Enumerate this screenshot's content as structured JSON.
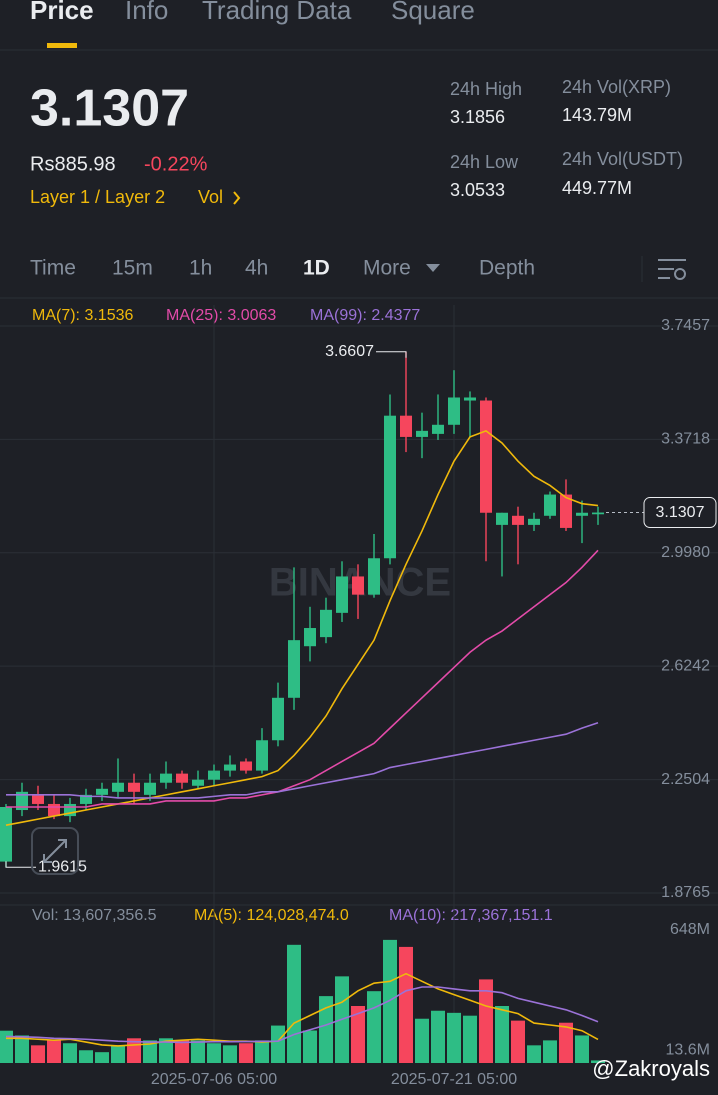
{
  "tabs": [
    "Price",
    "Info",
    "Trading Data",
    "Square"
  ],
  "price": {
    "last": "3.1307",
    "fiat": "Rs885.98",
    "change": "-0.22%",
    "tag": "Layer 1 / Layer 2",
    "vol_link": "Vol"
  },
  "stats": [
    {
      "label": "24h High",
      "value": "3.1856"
    },
    {
      "label": "24h Low",
      "value": "3.0533"
    },
    {
      "label": "24h Vol(XRP)",
      "value": "143.79M"
    },
    {
      "label": "24h Vol(USDT)",
      "value": "449.77M"
    }
  ],
  "timeframes": [
    "Time",
    "15m",
    "1h",
    "4h",
    "1D",
    "More",
    "Depth"
  ],
  "watermark": "BINANCE",
  "credit": "@Zakroyals",
  "chart_data": [
    {
      "type": "candlestick",
      "up_color": "#2ebd85",
      "down_color": "#f6465d",
      "grid": true,
      "categories": [
        null,
        null,
        null,
        null,
        null,
        null,
        null,
        null,
        null,
        null,
        null,
        null,
        null,
        "2025-07-06 05:00",
        null,
        null,
        null,
        null,
        null,
        null,
        null,
        null,
        null,
        null,
        null,
        null,
        null,
        null,
        "2025-07-21 05:00",
        null,
        null,
        null,
        null,
        null,
        null,
        null,
        null,
        null
      ],
      "open": [
        1.98,
        2.15,
        2.2,
        2.17,
        2.13,
        2.17,
        2.2,
        2.21,
        2.24,
        2.2,
        2.24,
        2.27,
        2.23,
        2.25,
        2.28,
        2.31,
        2.28,
        2.38,
        2.52,
        2.69,
        2.72,
        2.8,
        2.92,
        2.86,
        2.98,
        3.45,
        3.38,
        3.39,
        3.42,
        3.5,
        3.5,
        3.09,
        3.12,
        3.09,
        3.12,
        3.19,
        3.12,
        3.125
      ],
      "high": [
        2.17,
        2.24,
        2.23,
        2.2,
        2.19,
        2.22,
        2.24,
        2.32,
        2.27,
        2.27,
        2.31,
        2.28,
        2.28,
        2.3,
        2.33,
        2.32,
        2.42,
        2.57,
        2.95,
        2.82,
        2.85,
        2.97,
        2.96,
        3.06,
        3.52,
        3.6607,
        3.46,
        3.52,
        3.6,
        3.53,
        3.51,
        3.13,
        3.15,
        3.13,
        3.2,
        3.24,
        3.17,
        3.15
      ],
      "low": [
        1.9615,
        2.13,
        2.15,
        2.12,
        2.11,
        2.15,
        2.18,
        2.19,
        2.17,
        2.18,
        2.22,
        2.22,
        2.22,
        2.23,
        2.26,
        2.27,
        2.27,
        2.36,
        2.48,
        2.64,
        2.7,
        2.77,
        2.78,
        2.85,
        2.96,
        3.33,
        3.31,
        3.37,
        3.39,
        3.38,
        2.97,
        2.92,
        2.96,
        3.07,
        3.11,
        3.07,
        3.03,
        3.09
      ],
      "close": [
        2.16,
        2.21,
        2.17,
        2.13,
        2.17,
        2.2,
        2.22,
        2.24,
        2.21,
        2.24,
        2.27,
        2.24,
        2.25,
        2.28,
        2.3,
        2.28,
        2.38,
        2.52,
        2.71,
        2.75,
        2.81,
        2.92,
        2.86,
        2.98,
        3.45,
        3.38,
        3.4,
        3.42,
        3.51,
        3.51,
        3.13,
        3.13,
        3.09,
        3.11,
        3.19,
        3.08,
        3.13,
        3.1307
      ],
      "lines": [
        {
          "label": "MA(7): 3.1536",
          "color": "#f0b90b",
          "values": [
            2.1,
            2.11,
            2.12,
            2.13,
            2.14,
            2.15,
            2.16,
            2.17,
            2.18,
            2.19,
            2.2,
            2.21,
            2.22,
            2.23,
            2.24,
            2.25,
            2.26,
            2.28,
            2.33,
            2.39,
            2.46,
            2.55,
            2.63,
            2.71,
            2.84,
            2.96,
            3.07,
            3.19,
            3.3,
            3.38,
            3.4,
            3.36,
            3.3,
            3.25,
            3.22,
            3.18,
            3.16,
            3.1536
          ]
        },
        {
          "label": "MA(25): 3.0063",
          "color": "#e34ba9",
          "values": [
            2.16,
            2.16,
            2.16,
            2.16,
            2.16,
            2.16,
            2.17,
            2.17,
            2.17,
            2.17,
            2.18,
            2.18,
            2.18,
            2.18,
            2.19,
            2.19,
            2.2,
            2.21,
            2.23,
            2.25,
            2.28,
            2.31,
            2.34,
            2.37,
            2.42,
            2.47,
            2.52,
            2.57,
            2.62,
            2.67,
            2.71,
            2.74,
            2.78,
            2.82,
            2.86,
            2.9,
            2.95,
            3.0063
          ]
        },
        {
          "label": "MA(99): 2.4377",
          "color": "#9b72d8",
          "values": [
            2.2,
            2.2,
            2.2,
            2.2,
            2.2,
            2.195,
            2.195,
            2.19,
            2.19,
            2.19,
            2.19,
            2.19,
            2.19,
            2.195,
            2.2,
            2.2,
            2.21,
            2.21,
            2.22,
            2.23,
            2.24,
            2.25,
            2.26,
            2.27,
            2.29,
            2.3,
            2.31,
            2.32,
            2.33,
            2.34,
            2.35,
            2.36,
            2.37,
            2.38,
            2.39,
            2.4,
            2.42,
            2.4377
          ]
        }
      ],
      "ylim": [
        1.8369,
        3.8149
      ],
      "yticks": [
        1.8765,
        2.2504,
        2.6242,
        {
          "value": 2.998,
          "label": "2.9980"
        },
        3.3718,
        3.7457
      ]
    },
    {
      "type": "bar",
      "legend": "Vol: 13,607,356.5",
      "values": [
        170,
        145,
        93,
        119,
        104,
        67,
        57,
        93,
        130,
        119,
        130,
        119,
        119,
        104,
        93,
        104,
        119,
        197,
        622,
        171,
        352,
        456,
        300,
        378,
        648,
        611,
        233,
        275,
        264,
        249,
        440,
        300,
        223,
        93,
        119,
        212,
        145,
        13.6073565
      ],
      "lines": [
        {
          "label": "MA(5): 124,028,474.0",
          "color": "#f0b90b",
          "values": [
            130,
            130,
            125,
            120,
            125,
            110,
            95,
            90,
            95,
            100,
            115,
            120,
            125,
            120,
            115,
            115,
            110,
            115,
            210,
            250,
            290,
            320,
            380,
            420,
            430,
            470,
            430,
            390,
            360,
            330,
            300,
            280,
            260,
            210,
            200,
            190,
            170,
            124.028474
          ]
        },
        {
          "label": "MA(10): 217,367,151.1",
          "color": "#9b72d8",
          "values": [
            140,
            138,
            135,
            130,
            128,
            125,
            120,
            115,
            112,
            110,
            110,
            108,
            110,
            112,
            112,
            113,
            114,
            115,
            150,
            175,
            200,
            230,
            260,
            290,
            330,
            380,
            400,
            400,
            390,
            380,
            380,
            370,
            340,
            320,
            300,
            280,
            250,
            217.3671511
          ]
        }
      ],
      "ylim": [
        0,
        700
      ],
      "yticks": [
        {
          "value": 13.6,
          "label": "13.6M"
        },
        {
          "value": 648,
          "label": "648M"
        }
      ]
    }
  ]
}
